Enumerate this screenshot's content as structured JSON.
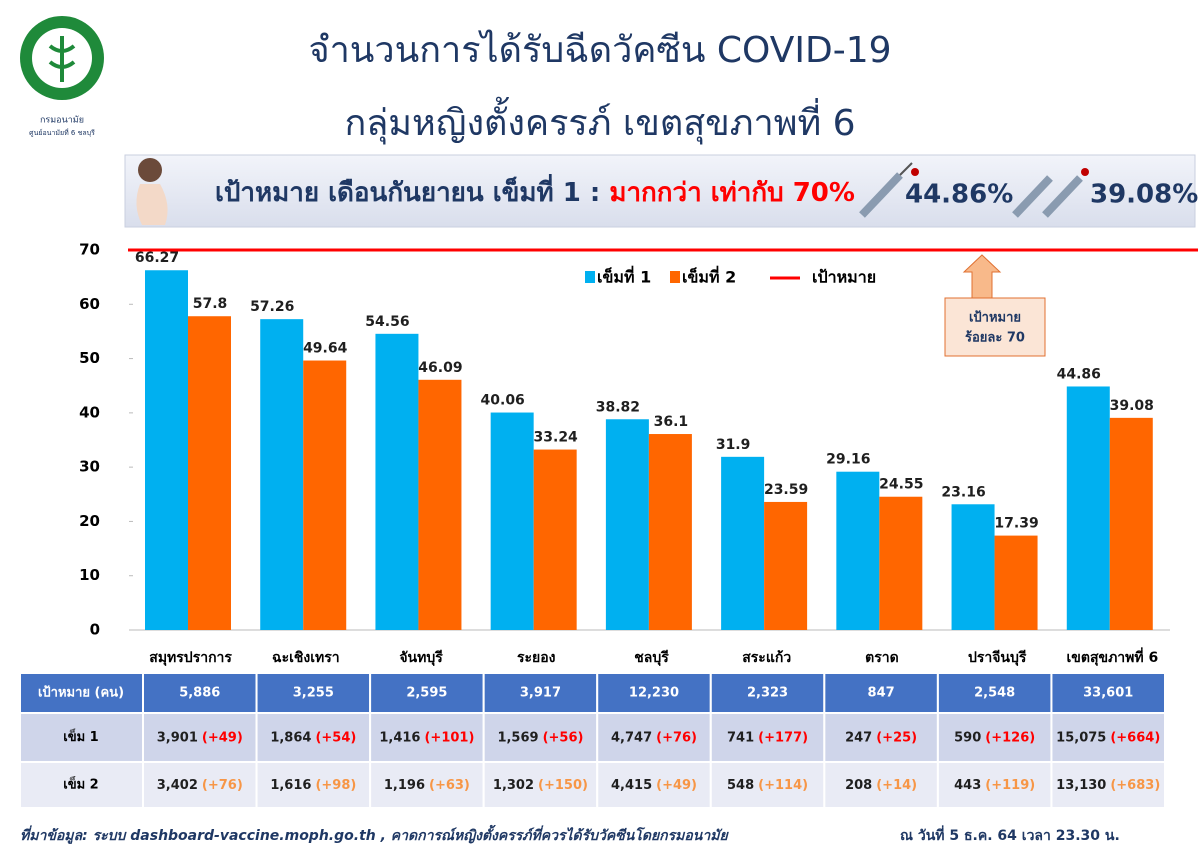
{
  "header": {
    "title": "จำนวนการได้รับฉีดวัคซีน COVID-19",
    "subtitle": "กลุ่มหญิงตั้งครรภ์ เขตสุขภาพที่ 6",
    "logo_name": "กรมอนามัย",
    "logo_unit": "ศูนย์อนามัยที่ 6 ชลบุรี"
  },
  "banner": {
    "target_text": "เป้าหมาย เดือนกันยายน เข็มที่ 1 : ",
    "target_highlight": "มากกว่า เท่ากับ 70%",
    "dose1_pct": "44.86%",
    "dose2_pct": "39.08%"
  },
  "chart_data": {
    "type": "bar",
    "categories": [
      "สมุทรปราการ",
      "ฉะเชิงเทรา",
      "จันทบุรี",
      "ระยอง",
      "ชลบุรี",
      "สระแก้ว",
      "ตราด",
      "ปราจีนบุรี",
      "เขตสุขภาพที่ 6"
    ],
    "series": [
      {
        "name": "เข็มที่ 1",
        "color": "#00b0f0",
        "values": [
          66.27,
          57.26,
          54.56,
          40.06,
          38.82,
          31.9,
          29.16,
          23.16,
          44.86
        ]
      },
      {
        "name": "เข็มที่ 2",
        "color": "#ff6600",
        "values": [
          57.8,
          49.64,
          46.09,
          33.24,
          36.1,
          23.59,
          24.55,
          17.39,
          39.08
        ]
      }
    ],
    "target": {
      "name": "เป้าหมาย",
      "value": 70,
      "color": "#ff0000"
    },
    "annotation": [
      "เป้าหมาย",
      "ร้อยละ 70"
    ],
    "ylim": [
      0,
      70
    ],
    "yticks": [
      0,
      10,
      20,
      30,
      40,
      50,
      60,
      70
    ],
    "grid": false,
    "legend": "top"
  },
  "table": {
    "header_row": {
      "label": "เป้าหมาย (คน)",
      "values": [
        "5,886",
        "3,255",
        "2,595",
        "3,917",
        "12,230",
        "2,323",
        "847",
        "2,548",
        "33,601"
      ]
    },
    "rows": [
      {
        "label": "เข็ม 1",
        "counts": [
          "3,901",
          "1,864",
          "1,416",
          "1,569",
          "4,747",
          "741",
          "247",
          "590",
          "15,075"
        ],
        "changes": [
          "(+49)",
          "(+54)",
          "(+101)",
          "(+56)",
          "(+76)",
          "(+177)",
          "(+25)",
          "(+126)",
          "(+664)"
        ],
        "change_color": "#ff0000"
      },
      {
        "label": "เข็ม 2",
        "counts": [
          "3,402",
          "1,616",
          "1,196",
          "1,302",
          "4,415",
          "548",
          "208",
          "443",
          "13,130"
        ],
        "changes": [
          "(+76)",
          "(+98)",
          "(+63)",
          "(+150)",
          "(+49)",
          "(+114)",
          "(+14)",
          "(+119)",
          "(+683)"
        ],
        "change_color": "#f79646"
      }
    ]
  },
  "footer": {
    "source": "ที่มาข้อมูล: ระบบ dashboard-vaccine.moph.go.th , คาดการณ์หญิงตั้งครรภ์ที่ควรได้รับวัคซีนโดยกรมอนามัย",
    "date": "ณ วันที่ 5 ธ.ค. 64  เวลา 23.30 น."
  }
}
